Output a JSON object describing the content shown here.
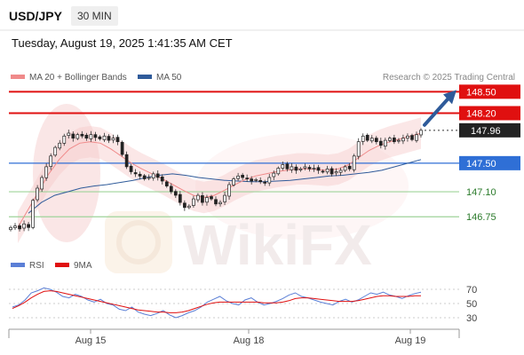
{
  "header": {
    "pair": "USD/JPY",
    "timeframe": "30 MIN",
    "datetime": "Tuesday, August 19, 2025 1:41:35 AM CET"
  },
  "legend": {
    "ma20_label": "MA 20 + Bollinger Bands",
    "ma50_label": "MA 50",
    "credit": "Research © 2025 Trading Central",
    "ma20_color": "#f08a8a",
    "ma50_color": "#2f5b9a"
  },
  "indicator_legend": {
    "rsi_label": "RSI",
    "ma9_label": "9MA",
    "rsi_color": "#5b7fd6",
    "ma9_color": "#e01010"
  },
  "watermark": "WikiFX",
  "chart_data": [
    {
      "type": "candlestick",
      "title": "USD/JPY 30 MIN",
      "ylim": [
        146.43,
        148.79
      ],
      "x_ticks": [
        "Aug 15",
        "Aug 18",
        "Aug 19"
      ],
      "current_price": 147.96,
      "levels": [
        {
          "value": 148.5,
          "label": "148.50",
          "kind": "resistance",
          "color": "#e01010"
        },
        {
          "value": 148.2,
          "label": "148.20",
          "kind": "resistance",
          "color": "#e01010"
        },
        {
          "value": 147.5,
          "label": "147.50",
          "kind": "pivot",
          "color": "#2f6fd6"
        },
        {
          "value": 147.1,
          "label": "147.10",
          "kind": "support",
          "color": "#9fd39a"
        },
        {
          "value": 146.75,
          "label": "146.75",
          "kind": "support",
          "color": "#9fd39a"
        }
      ],
      "close_series": [
        146.6,
        146.62,
        146.58,
        146.65,
        146.6,
        146.98,
        147.15,
        147.3,
        147.45,
        147.6,
        147.72,
        147.78,
        147.88,
        147.92,
        147.85,
        147.9,
        147.88,
        147.85,
        147.9,
        147.86,
        147.84,
        147.88,
        147.82,
        147.85,
        147.8,
        147.62,
        147.45,
        147.38,
        147.35,
        147.32,
        147.28,
        147.3,
        147.35,
        147.3,
        147.25,
        147.18,
        147.1,
        147.05,
        146.95,
        146.88,
        146.9,
        147.0,
        147.05,
        146.95,
        147.02,
        147.0,
        146.93,
        146.95,
        147.05,
        147.2,
        147.28,
        147.32,
        147.3,
        147.28,
        147.25,
        147.27,
        147.24,
        147.22,
        147.3,
        147.36,
        147.43,
        147.48,
        147.42,
        147.45,
        147.4,
        147.42,
        147.45,
        147.42,
        147.43,
        147.4,
        147.38,
        147.42,
        147.35,
        147.38,
        147.4,
        147.45,
        147.42,
        147.6,
        147.8,
        147.88,
        147.82,
        147.85,
        147.8,
        147.75,
        147.82,
        147.85,
        147.8,
        147.82,
        147.85,
        147.88,
        147.83,
        147.9,
        147.96
      ],
      "ma20": [
        146.6,
        146.85,
        147.1,
        147.35,
        147.55,
        147.7,
        147.78,
        147.8,
        147.78,
        147.7,
        147.6,
        147.5,
        147.42,
        147.35,
        147.28,
        147.2,
        147.12,
        147.05,
        147.02,
        147.05,
        147.12,
        147.2,
        147.27,
        147.32,
        147.35,
        147.38,
        147.4,
        147.42,
        147.42,
        147.41,
        147.4,
        147.42,
        147.48,
        147.58,
        147.68,
        147.75,
        147.8,
        147.84,
        147.88,
        147.92
      ],
      "ma50": [
        146.8,
        146.95,
        147.05,
        147.1,
        147.15,
        147.18,
        147.2,
        147.23,
        147.26,
        147.3,
        147.33,
        147.35,
        147.33,
        147.3,
        147.28,
        147.26,
        147.25,
        147.24,
        147.24,
        147.25,
        147.26,
        147.28,
        147.3,
        147.32,
        147.33,
        147.35,
        147.37,
        147.4,
        147.45,
        147.5,
        147.55
      ]
    },
    {
      "type": "line",
      "title": "RSI",
      "ylim": [
        20,
        80
      ],
      "yticks": [
        70,
        50,
        30
      ],
      "series": [
        {
          "name": "RSI",
          "values": [
            45,
            48,
            55,
            65,
            68,
            72,
            70,
            66,
            60,
            58,
            63,
            60,
            55,
            52,
            56,
            50,
            48,
            42,
            40,
            45,
            38,
            35,
            33,
            36,
            40,
            34,
            30,
            33,
            37,
            40,
            45,
            52,
            56,
            60,
            54,
            50,
            48,
            55,
            58,
            52,
            48,
            50,
            53,
            57,
            62,
            65,
            60,
            58,
            55,
            52,
            50,
            48,
            53,
            56,
            52,
            55,
            60,
            65,
            63,
            66,
            62,
            60,
            57,
            61,
            64,
            66
          ]
        },
        {
          "name": "9MA",
          "values": [
            43,
            47,
            52,
            58,
            63,
            67,
            68,
            67,
            65,
            63,
            61,
            59,
            57,
            55,
            53,
            51,
            49,
            47,
            45,
            43,
            41,
            40,
            39,
            38,
            38,
            37,
            37,
            38,
            40,
            43,
            46,
            49,
            51,
            52,
            52,
            52,
            52,
            52,
            52,
            52,
            51,
            51,
            51,
            52,
            54,
            57,
            58,
            58,
            57,
            56,
            55,
            54,
            53,
            53,
            53,
            54,
            56,
            58,
            60,
            61,
            61,
            60,
            60,
            60,
            61,
            61
          ]
        }
      ]
    }
  ]
}
